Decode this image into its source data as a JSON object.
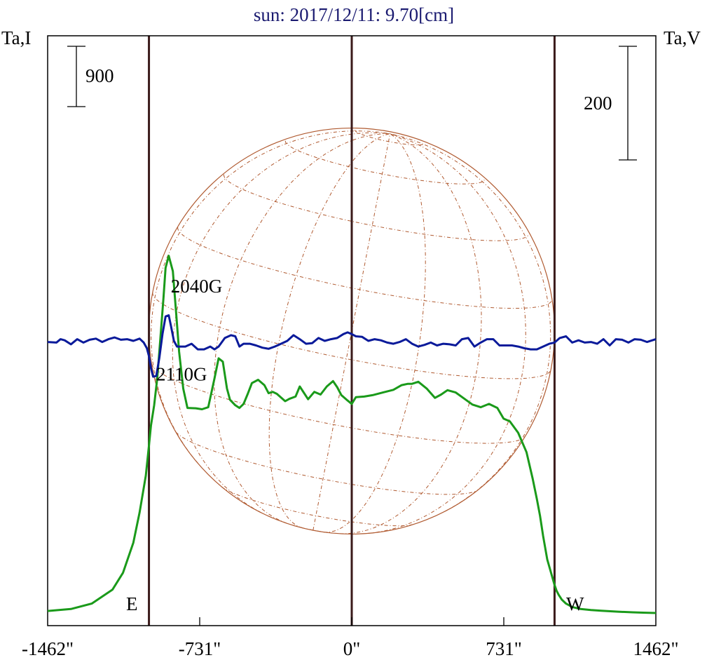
{
  "chart_data": {
    "type": "line",
    "title": "sun: 2017/12/11: 9.70[cm]",
    "left_axis_label": "Ta,I",
    "right_axis_label": "Ta,V",
    "x_tick_labels": [
      "-1462\"",
      "-731\"",
      "0\"",
      "731\"",
      "1462\""
    ],
    "x_ticks": [
      -1462,
      -731,
      0,
      731,
      1462
    ],
    "xlim": [
      -1462,
      1462
    ],
    "scale_bar_left": "900",
    "scale_bar_right": "200",
    "limb_labels": {
      "east": "E",
      "west": "W"
    },
    "limb_positions": [
      -975,
      975
    ],
    "annotations": [
      {
        "text": "2040G",
        "x": -870,
        "y_v": 85
      },
      {
        "text": "2110G",
        "x": -940,
        "y_v": -70
      }
    ],
    "colors": {
      "title": "#1a1a70",
      "intensity": "#1a9a1a",
      "polarization": "#0a1a9a",
      "vertical_lines": "#3a1a1a",
      "solar_disk": "#b05a30",
      "frame": "#000000"
    },
    "series": [
      {
        "key": "I",
        "axis": "left",
        "x": [
          -1462,
          -1350,
          -1250,
          -1150,
          -1100,
          -1050,
          -1020,
          -990,
          -975,
          -965,
          -950,
          -935,
          -920,
          -905,
          -895,
          -880,
          -860,
          -845,
          -830,
          -810,
          -790,
          -750,
          -720,
          -690,
          -660,
          -640,
          -620,
          -600,
          -585,
          -560,
          -540,
          -520,
          -500,
          -480,
          -450,
          -420,
          -400,
          -380,
          -360,
          -320,
          -300,
          -270,
          -250,
          -210,
          -180,
          -150,
          -120,
          -90,
          -70,
          -50,
          -20,
          0,
          20,
          60,
          100,
          150,
          200,
          240,
          270,
          290,
          320,
          360,
          400,
          430,
          460,
          500,
          540,
          580,
          620,
          660,
          700,
          730,
          760,
          800,
          840,
          870,
          890,
          905,
          920,
          940,
          960,
          975,
          985,
          995,
          1010,
          1030,
          1060,
          1100,
          1150,
          1200,
          1280,
          1350,
          1400,
          1462
        ],
        "y": [
          30,
          60,
          140,
          350,
          600,
          1050,
          1500,
          2050,
          2500,
          2800,
          3100,
          3500,
          4100,
          4700,
          5150,
          5330,
          5100,
          4500,
          3900,
          3350,
          3060,
          3055,
          3040,
          3070,
          3500,
          3800,
          3750,
          3350,
          3180,
          3100,
          3060,
          3120,
          3270,
          3430,
          3480,
          3400,
          3280,
          3300,
          3270,
          3160,
          3195,
          3230,
          3380,
          3190,
          3300,
          3260,
          3380,
          3460,
          3370,
          3250,
          3170,
          3120,
          3220,
          3230,
          3250,
          3290,
          3330,
          3400,
          3420,
          3420,
          3450,
          3350,
          3210,
          3260,
          3325,
          3290,
          3200,
          3110,
          3070,
          3120,
          3060,
          2900,
          2860,
          2690,
          2400,
          2000,
          1700,
          1450,
          1150,
          800,
          580,
          420,
          330,
          270,
          200,
          140,
          90,
          60,
          45,
          35,
          20,
          10,
          5,
          0
        ]
      },
      {
        "key": "V",
        "axis": "right",
        "x": [
          -1462,
          -1420,
          -1400,
          -1380,
          -1350,
          -1320,
          -1290,
          -1260,
          -1230,
          -1200,
          -1170,
          -1140,
          -1110,
          -1080,
          -1050,
          -1020,
          -1000,
          -985,
          -975,
          -965,
          -955,
          -940,
          -925,
          -910,
          -895,
          -880,
          -870,
          -855,
          -840,
          -820,
          -800,
          -770,
          -740,
          -710,
          -680,
          -660,
          -640,
          -610,
          -580,
          -560,
          -540,
          -520,
          -490,
          -460,
          -430,
          -400,
          -370,
          -340,
          -310,
          -280,
          -250,
          -220,
          -190,
          -160,
          -130,
          -100,
          -70,
          -40,
          -20,
          0,
          20,
          50,
          80,
          110,
          140,
          170,
          200,
          230,
          260,
          290,
          320,
          350,
          380,
          410,
          440,
          470,
          500,
          530,
          560,
          590,
          620,
          650,
          680,
          710,
          740,
          770,
          800,
          830,
          860,
          890,
          920,
          950,
          975,
          1000,
          1030,
          1060,
          1090,
          1120,
          1150,
          1180,
          1210,
          1240,
          1270,
          1300,
          1330,
          1360,
          1390,
          1420,
          1462
        ],
        "y": [
          -2,
          -3,
          3,
          1,
          -6,
          3,
          -3,
          2,
          4,
          -2,
          3,
          6,
          2,
          3,
          0,
          4,
          -3,
          -13,
          -27,
          -48,
          -63,
          -62,
          -30,
          12,
          43,
          45,
          28,
          0,
          -10,
          -10,
          -10,
          -5,
          -15,
          -15,
          -10,
          -15,
          -10,
          5,
          10,
          8,
          -10,
          -5,
          -5,
          -8,
          -12,
          -14,
          -10,
          -5,
          0,
          10,
          3,
          -5,
          -4,
          5,
          0,
          3,
          5,
          12,
          15,
          12,
          8,
          7,
          0,
          3,
          1,
          -3,
          -5,
          -2,
          3,
          -5,
          -10,
          -7,
          -3,
          -8,
          -5,
          -6,
          -8,
          3,
          5,
          -10,
          -3,
          3,
          3,
          -8,
          -8,
          -8,
          -10,
          -13,
          -15,
          -15,
          -10,
          -5,
          -3,
          5,
          8,
          -3,
          1,
          -3,
          -2,
          -5,
          3,
          -8,
          3,
          2,
          -3,
          3,
          2,
          -2,
          3
        ]
      }
    ]
  }
}
